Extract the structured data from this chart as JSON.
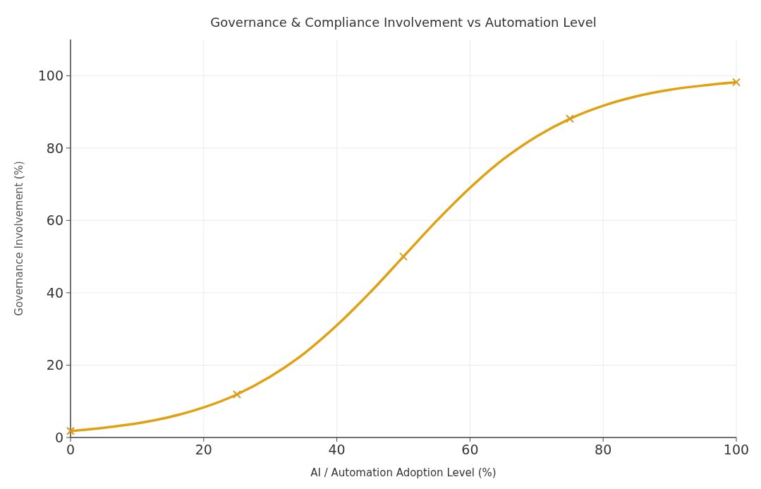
{
  "chart_data": {
    "type": "line",
    "title": "Governance & Compliance Involvement vs Automation Level",
    "xlabel": "AI / Automation Adoption Level (%)",
    "ylabel": "Governance Involvement (%)",
    "xlim": [
      0,
      100
    ],
    "ylim": [
      0,
      110
    ],
    "xticks": [
      0,
      20,
      40,
      60,
      80,
      100
    ],
    "yticks": [
      0,
      20,
      40,
      60,
      80,
      100
    ],
    "grid": true,
    "line_style": "solid",
    "series": [
      {
        "color": "#e0a010",
        "marker": "none",
        "x": [
          0,
          5,
          10,
          15,
          20,
          25,
          30,
          35,
          40,
          45,
          50,
          55,
          60,
          65,
          70,
          75,
          80,
          85,
          90,
          95,
          100
        ],
        "values": [
          1.8,
          2.7,
          3.9,
          5.7,
          8.3,
          11.9,
          16.8,
          23.1,
          31.0,
          40.1,
          50,
          59.9,
          69.0,
          76.9,
          83.2,
          88.1,
          91.7,
          94.3,
          96.1,
          97.3,
          98.2
        ]
      },
      {
        "type": "scatter",
        "color": "#d89a20",
        "marker": "cross",
        "x": [
          0,
          25,
          50,
          75,
          100
        ],
        "values": [
          1.8,
          11.9,
          50,
          88.1,
          98.2
        ]
      }
    ]
  }
}
